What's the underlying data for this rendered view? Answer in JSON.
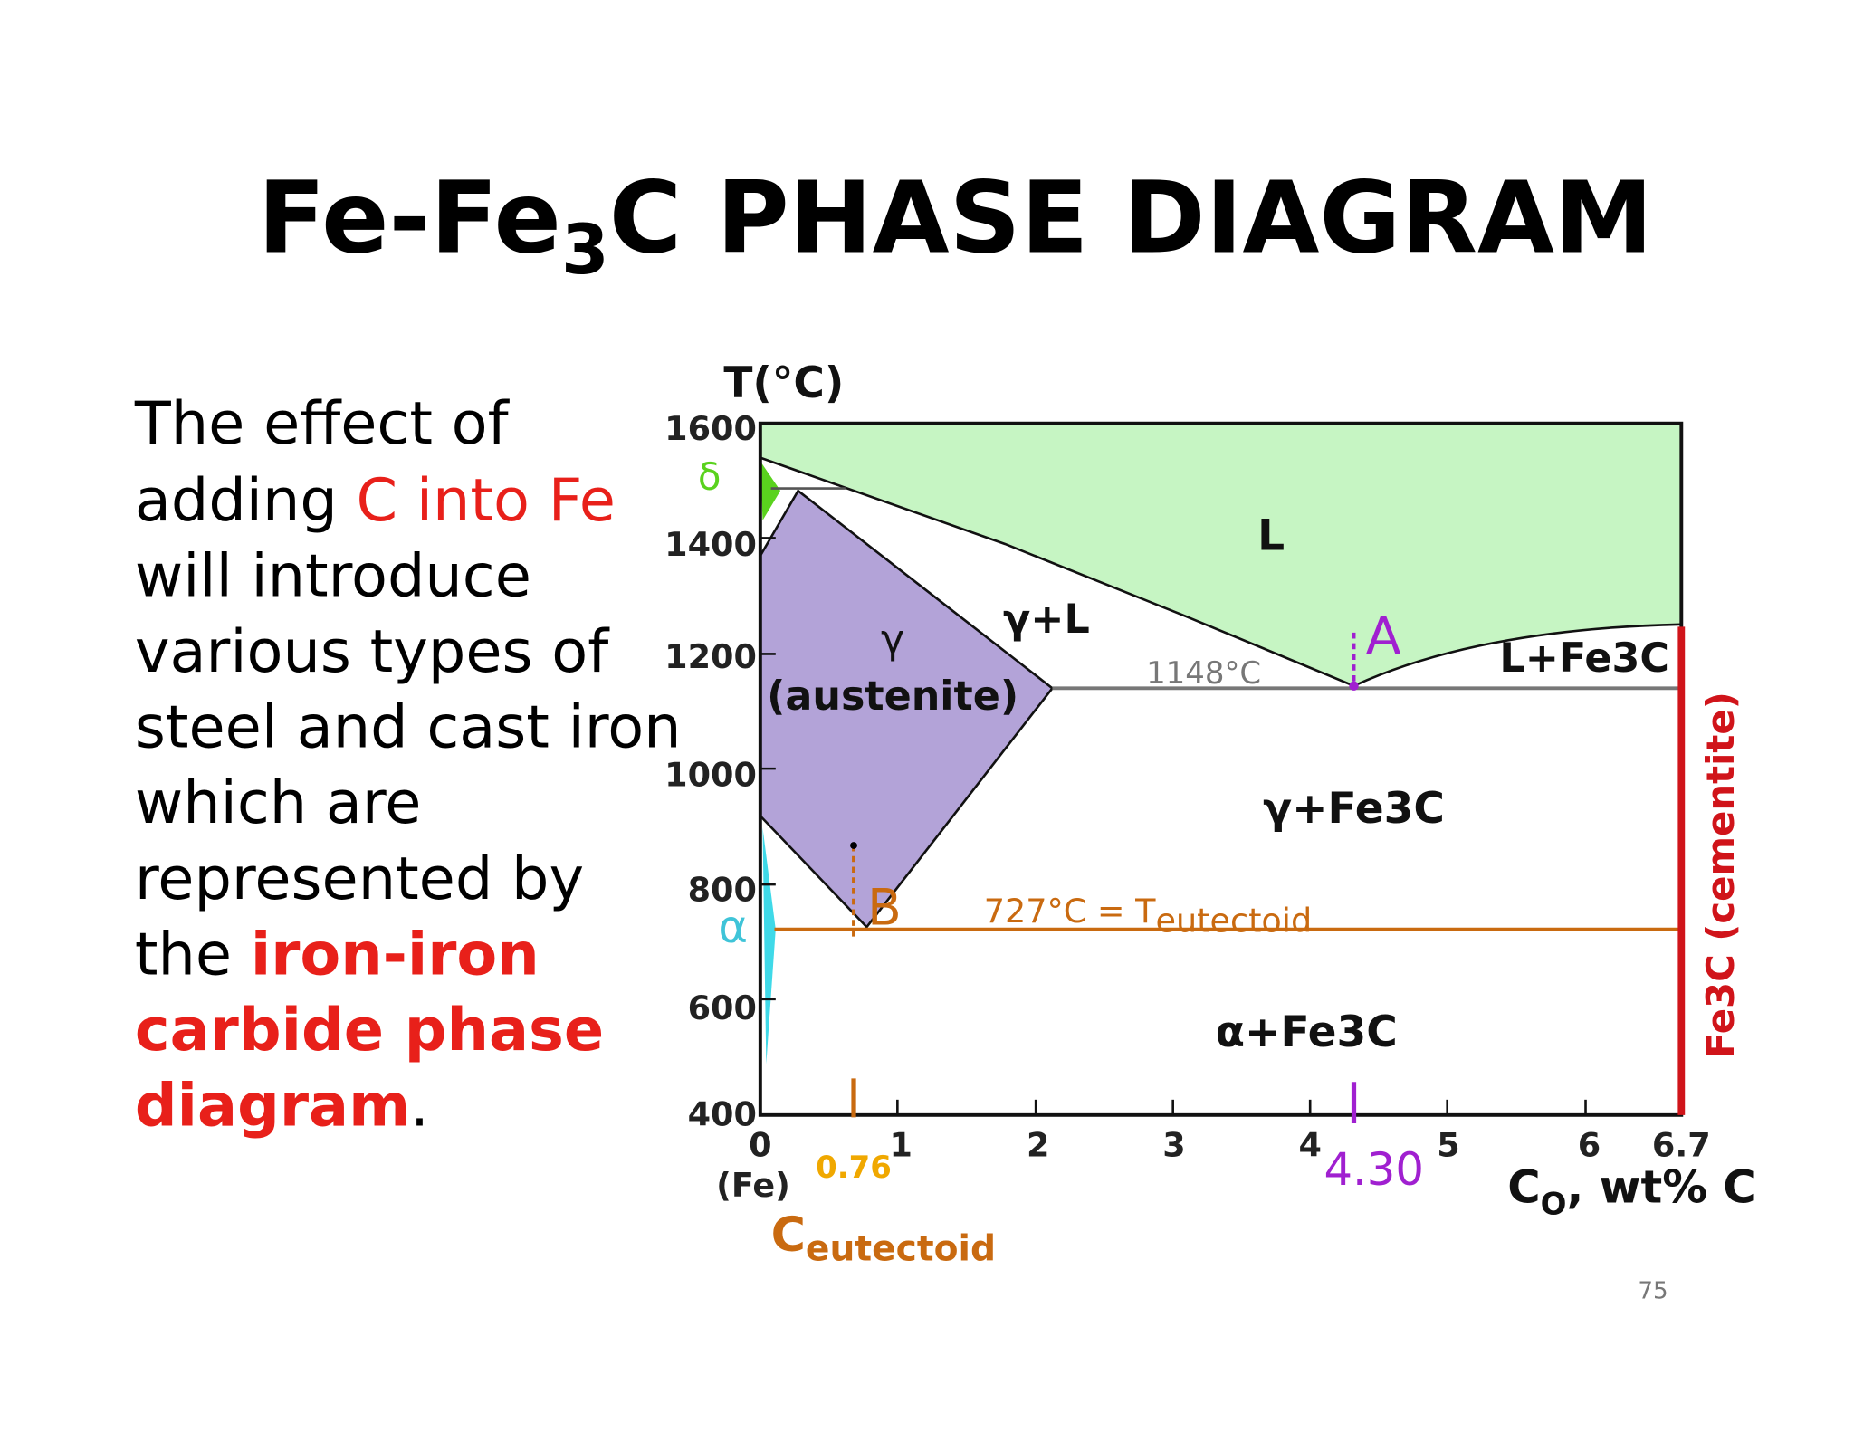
{
  "title": {
    "main": "Fe-Fe",
    "sub": "3",
    "rest": "C PHASE DIAGRAM"
  },
  "body": [
    [
      "The effect of"
    ],
    [
      "adding ",
      "C into Fe"
    ],
    [
      "will introduce"
    ],
    [
      "various types of"
    ],
    [
      "steel and cast iron"
    ],
    [
      "which are"
    ],
    [
      "represented by"
    ],
    [
      "the ",
      "iron-iron"
    ],
    [
      "carbide phase"
    ],
    [
      "diagram",
      "."
    ]
  ],
  "diagram": {
    "y_axis_title": "T(°C)",
    "y_tick_labels": [
      "1600",
      "1400",
      "1200",
      "1000",
      "800",
      "600",
      "400"
    ],
    "x_tick_labels": [
      "0",
      "1",
      "2",
      "3",
      "4",
      "5",
      "6",
      "6.7"
    ],
    "x_origin_note": "(Fe)",
    "x_axis_title": {
      "main": "C",
      "sub": "O",
      "rest": ", wt% C"
    },
    "eutectoid_composition": "0.76",
    "eutectic_composition": "4.30",
    "eutectoid_label": {
      "main": "C",
      "sub": "eutectoid"
    },
    "regions": {
      "liquid": "L",
      "gamma_liquid": "γ+L",
      "gamma": "γ",
      "austenite": "(austenite)",
      "liquid_cementite": "L+Fe3C",
      "gamma_cementite": "γ+Fe3C",
      "alpha_cementite": "α+Fe3C",
      "alpha": "α",
      "delta": "δ",
      "cementite": "Fe3C (cementite)"
    },
    "eutectic_temp": "1148°C",
    "eutectic_point": "A",
    "eutectoid_point": "B",
    "eutectoid_temp": {
      "main": "727°C = T",
      "sub": "eutectoid"
    }
  },
  "page_number": "75"
}
